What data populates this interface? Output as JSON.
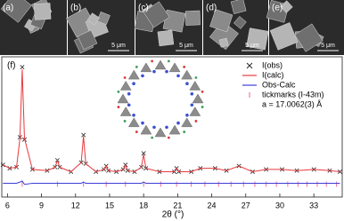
{
  "images": [
    {
      "label": "(a)"
    },
    {
      "label": "(b)",
      "scale": "5 μm"
    },
    {
      "label": "(c)",
      "scale": "5 μm"
    },
    {
      "label": "(d)",
      "scale": "5 μm"
    },
    {
      "label": "(e)",
      "scale": "5 μm"
    }
  ],
  "chart_data": {
    "type": "line",
    "panel_label": "(f)",
    "xlabel": "2θ (°)",
    "annotation": "a = 17.0062(3) Å",
    "xlim": [
      5.5,
      35.5
    ],
    "xticks": [
      6,
      9,
      12,
      15,
      18,
      21,
      24,
      27,
      30,
      33
    ],
    "ylim": [
      -12,
      110
    ],
    "x": [
      5.6,
      6.2,
      6.8,
      7.1,
      7.3,
      7.5,
      8.2,
      9.5,
      10.2,
      10.4,
      10.6,
      11.6,
      12.5,
      12.7,
      12.9,
      13.8,
      14.5,
      14.7,
      14.9,
      15.6,
      16.2,
      16.4,
      16.6,
      17.2,
      17.8,
      18.0,
      18.2,
      19.4,
      20.7,
      20.9,
      21.1,
      22.2,
      23.0,
      24.3,
      25.3,
      26.4,
      27.6,
      28.8,
      30.2,
      31.5,
      33.0,
      34.4,
      35.3
    ],
    "series": [
      {
        "name": "I(obs)",
        "color": "#222222",
        "marker": "x",
        "values": [
          16,
          13,
          14,
          40,
          101,
          38,
          12,
          11,
          14,
          20,
          14,
          10,
          18,
          42,
          17,
          10,
          12,
          15,
          11,
          10,
          12,
          16,
          11,
          10,
          14,
          26,
          13,
          10,
          10,
          13,
          10,
          10,
          13,
          13,
          11,
          15,
          10,
          12,
          12,
          11,
          12,
          11,
          10
        ]
      },
      {
        "name": "I(calc)",
        "color": "#e8383d",
        "values": [
          16,
          13,
          14,
          39,
          99,
          39,
          12,
          11,
          14,
          20,
          14,
          10,
          18,
          41,
          17,
          10,
          12,
          15,
          11,
          10,
          12,
          16,
          11,
          10,
          14,
          25,
          13,
          10,
          10,
          13,
          10,
          10,
          13,
          13,
          11,
          15,
          10,
          12,
          12,
          11,
          12,
          11,
          10
        ]
      },
      {
        "name": "Obs-Calc",
        "color": "#3d3dd8",
        "values": [
          0,
          0,
          0,
          1,
          2,
          -1,
          0,
          0,
          0,
          0,
          0,
          0,
          0,
          1,
          0,
          0,
          0,
          0,
          0,
          0,
          0,
          0,
          0,
          0,
          0,
          1,
          0,
          0,
          0,
          0,
          0,
          0,
          0,
          0,
          0,
          0,
          0,
          0,
          0,
          0,
          0,
          0,
          0
        ]
      }
    ],
    "tickmarks": {
      "name": "tickmarks (I-43m)",
      "color": "#e8638a",
      "x": [
        7.3,
        10.4,
        12.7,
        14.7,
        16.4,
        18.0,
        19.5,
        20.9,
        22.2,
        23.4,
        24.6,
        25.7,
        26.8,
        27.8,
        28.8,
        29.7,
        30.7,
        31.6,
        32.4,
        33.3,
        34.1,
        35.0
      ]
    }
  }
}
